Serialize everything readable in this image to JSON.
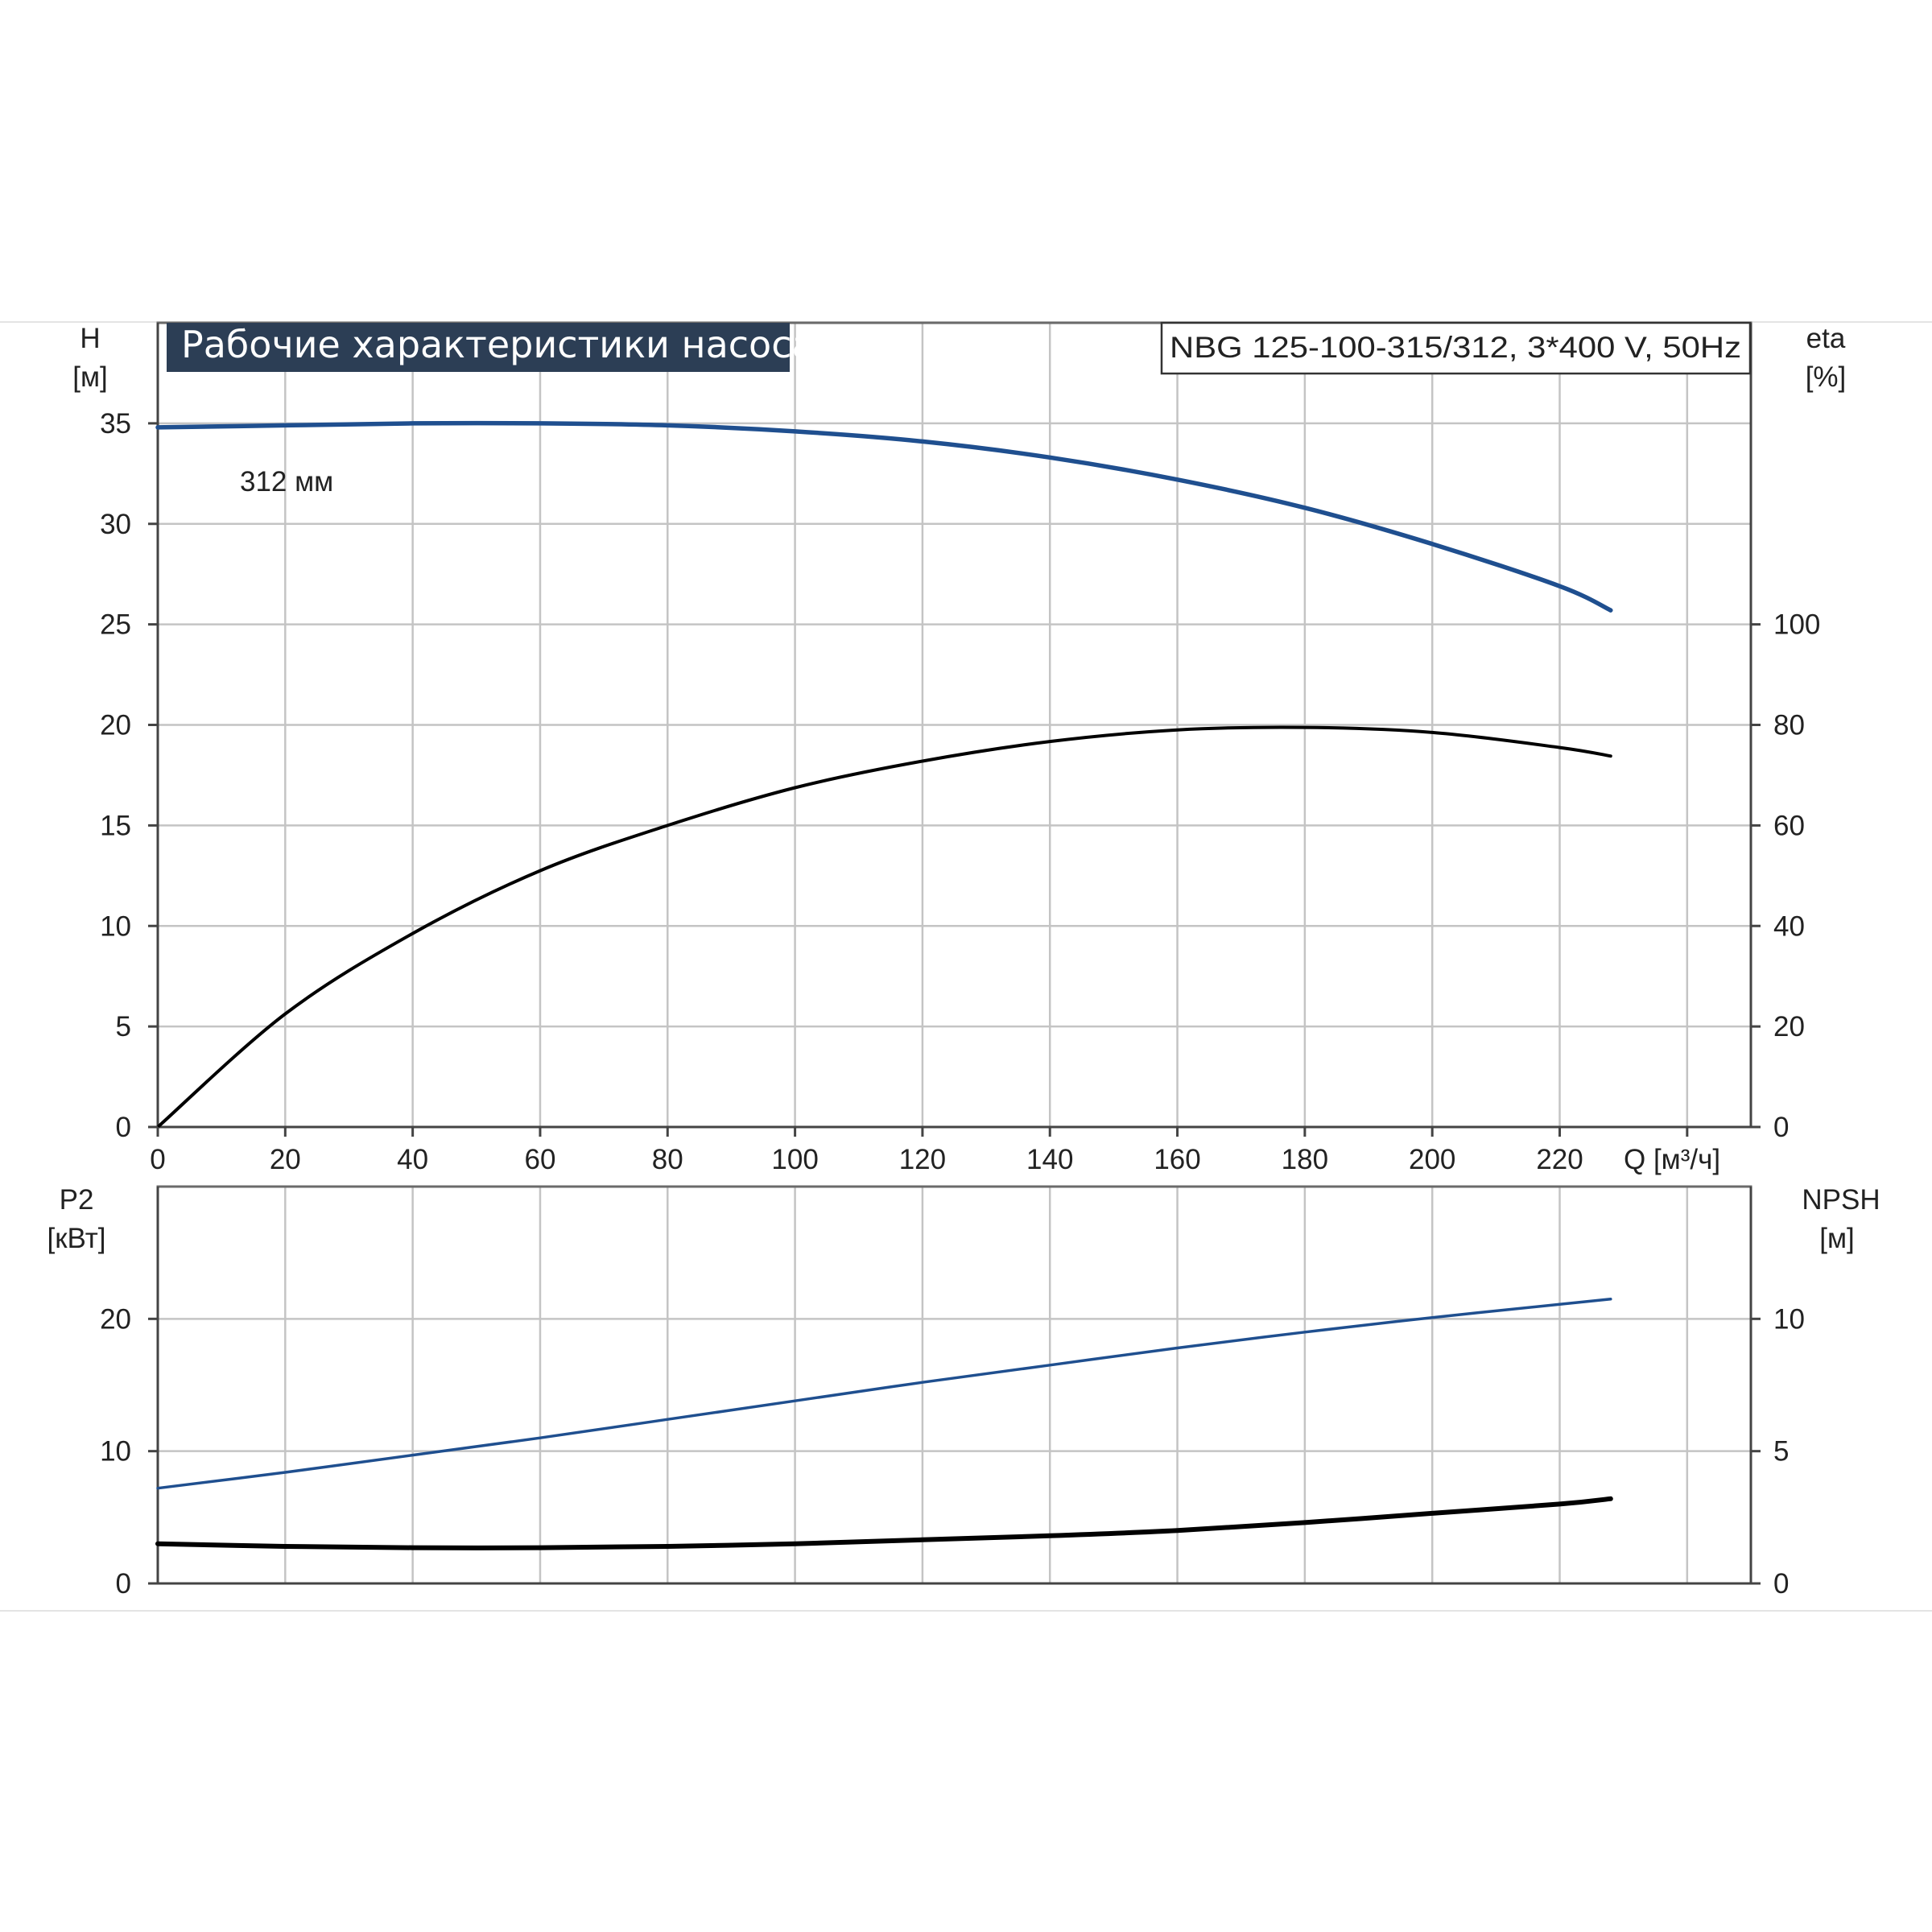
{
  "title": "Рабочие характеристики насоса",
  "model_label": "NBG 125-100-315/312, 3*400 V, 50Hz",
  "curve_label": "312 мм",
  "colors": {
    "blue_curve": "#1f4f8f",
    "black_curve": "#000000",
    "title_bg": "#2c3e55",
    "grid": "#c4c4c4"
  },
  "chart_data": [
    {
      "type": "line",
      "panel": "top",
      "xlabel": "Q [м³/ч]",
      "xlim": [
        0,
        250
      ],
      "x_ticks": [
        "0",
        "20",
        "40",
        "60",
        "80",
        "100",
        "120",
        "140",
        "160",
        "180",
        "200",
        "220"
      ],
      "ylabel_left": [
        "H",
        "[м]"
      ],
      "ylim_left": [
        0,
        40
      ],
      "y_ticks_left": [
        "0",
        "5",
        "10",
        "15",
        "20",
        "25",
        "30",
        "35"
      ],
      "ylabel_right": [
        "eta",
        "[%]"
      ],
      "ylim_right": [
        0,
        160
      ],
      "y_ticks_right": [
        "0",
        "20",
        "40",
        "60",
        "80",
        "100"
      ],
      "grid": true,
      "series": [
        {
          "name": "312 мм",
          "axis": "left",
          "color": "#1f4f8f",
          "x": [
            0,
            20,
            40,
            60,
            80,
            100,
            120,
            140,
            160,
            180,
            200,
            220,
            228
          ],
          "y": [
            34.8,
            34.9,
            35.0,
            35.0,
            34.9,
            34.6,
            34.1,
            33.3,
            32.2,
            30.8,
            29.0,
            26.9,
            25.7
          ]
        },
        {
          "axis": "right",
          "color": "#000000",
          "x": [
            0,
            20,
            40,
            60,
            80,
            100,
            120,
            140,
            160,
            180,
            200,
            220,
            228
          ],
          "y": [
            0,
            22.5,
            38.5,
            51,
            60,
            67.5,
            72.8,
            76.7,
            79,
            79.5,
            78.5,
            75.5,
            73.8
          ]
        }
      ]
    },
    {
      "type": "line",
      "panel": "bottom",
      "xlim": [
        0,
        250
      ],
      "ylabel_left": [
        "P2",
        "[кВт]"
      ],
      "ylim_left": [
        0,
        30
      ],
      "y_ticks_left": [
        "0",
        "10",
        "20"
      ],
      "ylabel_right": [
        "NPSH",
        "[м]"
      ],
      "ylim_right": [
        0,
        15
      ],
      "y_ticks_right": [
        "0",
        "5",
        "10"
      ],
      "grid": true,
      "series": [
        {
          "axis": "left",
          "color": "#1f4f8f",
          "x": [
            0,
            20,
            40,
            60,
            80,
            100,
            120,
            140,
            160,
            180,
            200,
            220,
            228
          ],
          "y": [
            7.2,
            8.4,
            9.7,
            11.0,
            12.4,
            13.8,
            15.2,
            16.5,
            17.8,
            19.0,
            20.1,
            21.1,
            21.5
          ]
        },
        {
          "axis": "right",
          "color": "#000000",
          "x": [
            0,
            20,
            40,
            60,
            80,
            100,
            120,
            140,
            160,
            180,
            200,
            220,
            228
          ],
          "y": [
            1.5,
            1.4,
            1.35,
            1.35,
            1.4,
            1.5,
            1.65,
            1.8,
            2.0,
            2.3,
            2.65,
            3.0,
            3.2
          ]
        }
      ]
    }
  ]
}
